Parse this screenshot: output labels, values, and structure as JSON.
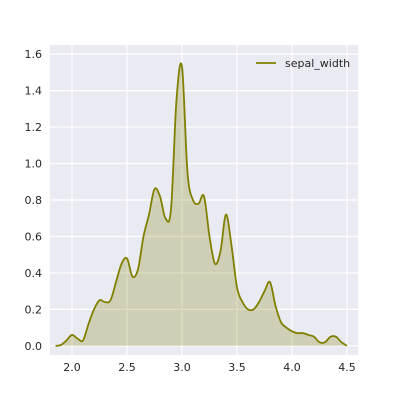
{
  "chart_data": {
    "type": "area",
    "title": "",
    "xlabel": "",
    "ylabel": "",
    "xlim": [
      1.8,
      4.6
    ],
    "ylim": [
      -0.05,
      1.65
    ],
    "x_ticks": [
      2.0,
      2.5,
      3.0,
      3.5,
      4.0,
      4.5
    ],
    "x_tick_labels": [
      "2.0",
      "2.5",
      "3.0",
      "3.5",
      "4.0",
      "4.5"
    ],
    "y_ticks": [
      0.0,
      0.2,
      0.4,
      0.6,
      0.8,
      1.0,
      1.2,
      1.4,
      1.6
    ],
    "y_tick_labels": [
      "0.0",
      "0.2",
      "0.4",
      "0.6",
      "0.8",
      "1.0",
      "1.2",
      "1.4",
      "1.6"
    ],
    "grid": true,
    "background_color": "#eaeaf2",
    "legend": {
      "position": "top-right"
    },
    "series": [
      {
        "name": "sepal_width",
        "color": "#808000",
        "fill_color": "#808000",
        "fill_opacity": 0.25,
        "x": [
          1.85,
          1.9,
          1.95,
          2.0,
          2.05,
          2.1,
          2.15,
          2.2,
          2.25,
          2.3,
          2.35,
          2.4,
          2.45,
          2.5,
          2.55,
          2.6,
          2.65,
          2.7,
          2.75,
          2.8,
          2.85,
          2.9,
          2.95,
          3.0,
          3.05,
          3.1,
          3.15,
          3.2,
          3.25,
          3.3,
          3.35,
          3.4,
          3.45,
          3.5,
          3.55,
          3.6,
          3.65,
          3.7,
          3.75,
          3.8,
          3.85,
          3.9,
          3.95,
          4.0,
          4.05,
          4.1,
          4.15,
          4.2,
          4.25,
          4.3,
          4.35,
          4.4,
          4.45,
          4.5
        ],
        "y": [
          0.0,
          0.005,
          0.03,
          0.06,
          0.04,
          0.03,
          0.12,
          0.2,
          0.25,
          0.24,
          0.25,
          0.35,
          0.45,
          0.48,
          0.38,
          0.42,
          0.6,
          0.72,
          0.86,
          0.82,
          0.7,
          0.75,
          1.35,
          1.53,
          0.95,
          0.8,
          0.78,
          0.82,
          0.6,
          0.45,
          0.52,
          0.72,
          0.55,
          0.32,
          0.24,
          0.2,
          0.2,
          0.24,
          0.3,
          0.35,
          0.22,
          0.13,
          0.1,
          0.08,
          0.07,
          0.07,
          0.06,
          0.05,
          0.02,
          0.02,
          0.05,
          0.05,
          0.02,
          0.0
        ]
      }
    ]
  }
}
